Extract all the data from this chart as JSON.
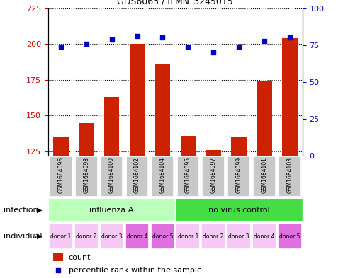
{
  "title": "GDS6063 / ILMN_3245015",
  "samples": [
    "GSM1684096",
    "GSM1684098",
    "GSM1684100",
    "GSM1684102",
    "GSM1684104",
    "GSM1684095",
    "GSM1684097",
    "GSM1684099",
    "GSM1684101",
    "GSM1684103"
  ],
  "counts": [
    135,
    145,
    163,
    200,
    186,
    136,
    126,
    135,
    174,
    204
  ],
  "percentile_ranks": [
    74,
    76,
    79,
    81,
    80,
    74,
    70,
    74,
    78,
    80
  ],
  "ylim_left": [
    122,
    225
  ],
  "ylim_right": [
    0,
    100
  ],
  "yticks_left": [
    125,
    150,
    175,
    200,
    225
  ],
  "yticks_right": [
    0,
    25,
    50,
    75,
    100
  ],
  "groups": [
    {
      "label": "influenza A",
      "start": 0,
      "end": 5,
      "color": "#bbffbb"
    },
    {
      "label": "no virus control",
      "start": 5,
      "end": 10,
      "color": "#44dd44"
    }
  ],
  "individuals": [
    "donor 1",
    "donor 2",
    "donor 3",
    "donor 4",
    "donor 5",
    "donor 1",
    "donor 2",
    "donor 3",
    "donor 4",
    "donor 5"
  ],
  "donor_colors": [
    "#f5c8f5",
    "#f5c8f5",
    "#f5c8f5",
    "#e070e0",
    "#e070e0",
    "#f5c8f5",
    "#f5c8f5",
    "#f5c8f5",
    "#f5c8f5",
    "#e070e0"
  ],
  "bar_color": "#cc2200",
  "scatter_color": "#0000cc",
  "bar_width": 0.6,
  "label_count": "count",
  "label_percentile": "percentile rank within the sample",
  "infection_label": "infection",
  "individual_label": "individual",
  "background_color": "#ffffff",
  "sample_box_color": "#c8c8c8",
  "tick_label_color_left": "#cc0000",
  "tick_label_color_right": "#0000cc"
}
